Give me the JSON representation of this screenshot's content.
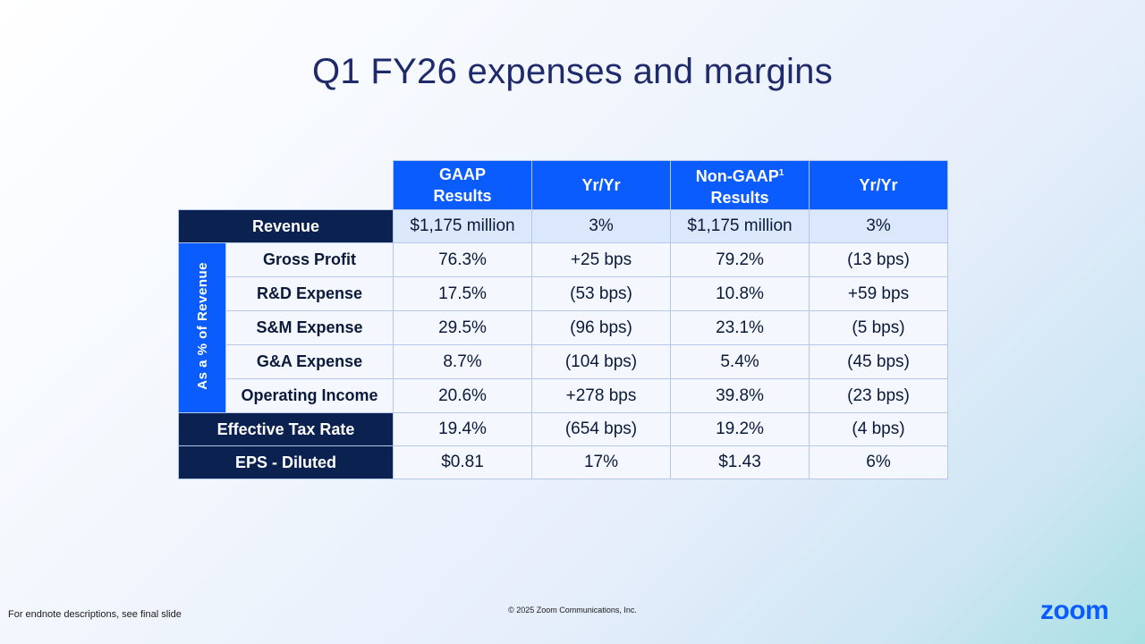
{
  "slide": {
    "title": "Q1 FY26 expenses and margins",
    "footnote": "For endnote descriptions, see final slide",
    "copyright": "© 2025 Zoom Communications, Inc.",
    "logo": "zoom"
  },
  "table": {
    "headers": {
      "gaap_line1": "GAAP",
      "gaap_line2": "Results",
      "yoy1": "Yr/Yr",
      "nongaap_line1": "Non-GAAP",
      "nongaap_sup": "1",
      "nongaap_line2": "Results",
      "yoy2": "Yr/Yr"
    },
    "group_label": "As a % of Revenue",
    "rows": [
      {
        "label": "Revenue",
        "gaap": "$1,175 million",
        "gaap_yoy": "3%",
        "nongaap": "$1,175 million",
        "nongaap_yoy": "3%"
      },
      {
        "label": "Gross Profit",
        "gaap": "76.3%",
        "gaap_yoy": "+25 bps",
        "nongaap": "79.2%",
        "nongaap_yoy": "(13 bps)"
      },
      {
        "label": "R&D Expense",
        "gaap": "17.5%",
        "gaap_yoy": "(53 bps)",
        "nongaap": "10.8%",
        "nongaap_yoy": "+59 bps"
      },
      {
        "label": "S&M Expense",
        "gaap": "29.5%",
        "gaap_yoy": "(96 bps)",
        "nongaap": "23.1%",
        "nongaap_yoy": "(5 bps)"
      },
      {
        "label": "G&A Expense",
        "gaap": "8.7%",
        "gaap_yoy": "(104 bps)",
        "nongaap": "5.4%",
        "nongaap_yoy": "(45 bps)"
      },
      {
        "label": "Operating Income",
        "gaap": "20.6%",
        "gaap_yoy": "+278 bps",
        "nongaap": "39.8%",
        "nongaap_yoy": "(23 bps)"
      },
      {
        "label": "Effective Tax Rate",
        "gaap": "19.4%",
        "gaap_yoy": "(654 bps)",
        "nongaap": "19.2%",
        "nongaap_yoy": "(4 bps)"
      },
      {
        "label": "EPS - Diluted",
        "gaap": "$0.81",
        "gaap_yoy": "17%",
        "nongaap": "$1.43",
        "nongaap_yoy": "6%"
      }
    ]
  },
  "colors": {
    "accent_blue": "#0b5cff",
    "navy": "#0b2150",
    "title": "#1f2a6b"
  }
}
